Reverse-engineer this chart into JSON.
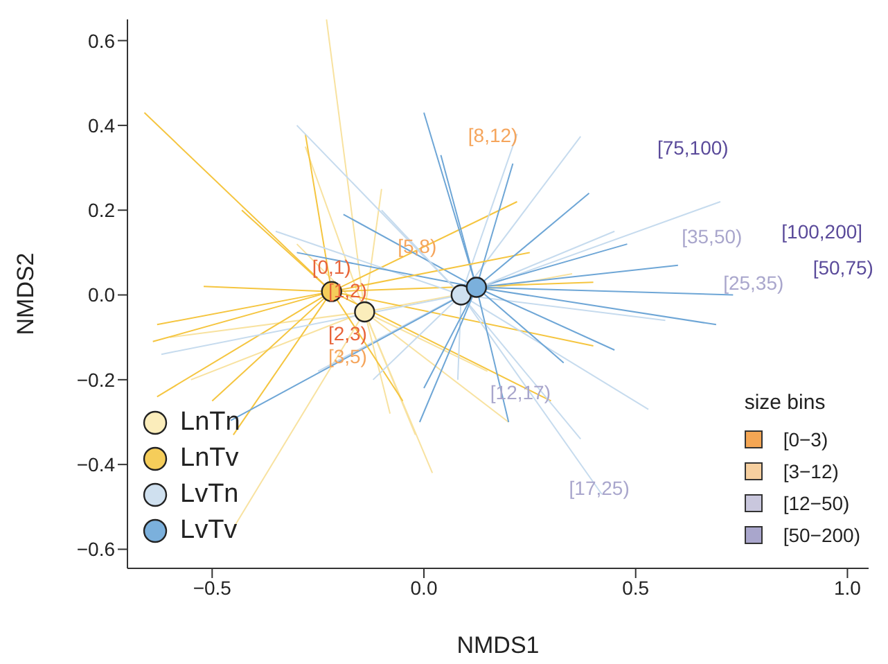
{
  "chart_data": {
    "type": "scatter",
    "xlabel": "NMDS1",
    "ylabel": "NMDS2",
    "legend_title": "size bins",
    "legend": "bottom left",
    "grid": false,
    "xlim": [
      -0.7,
      1.05
    ],
    "ylim": [
      -0.645,
      0.65
    ],
    "xticks": [
      {
        "value": -0.5,
        "label": "−0.5"
      },
      {
        "value": 0,
        "label": "0.0"
      },
      {
        "value": 0.5,
        "label": "0.5"
      },
      {
        "value": 1,
        "label": "1.0"
      }
    ],
    "yticks": [
      {
        "value": -0.6,
        "label": "−0.6"
      },
      {
        "value": -0.4,
        "label": "−0.4"
      },
      {
        "value": -0.2,
        "label": "−0.2"
      },
      {
        "value": 0,
        "label": "0.0"
      },
      {
        "value": 0.2,
        "label": "0.2"
      },
      {
        "value": 0.4,
        "label": "0.4"
      },
      {
        "value": 0.6,
        "label": "0.6"
      }
    ],
    "series": [
      {
        "type": "line",
        "marker": "none",
        "color": "#f8e2a0",
        "x": [
          -0.23,
          -0.14
        ],
        "values": [
          0.65,
          -0.04
        ]
      },
      {
        "type": "line",
        "marker": "none",
        "color": "#f8e2a0",
        "x": [
          -0.28,
          -0.14
        ],
        "values": [
          0.35,
          -0.04
        ]
      },
      {
        "type": "line",
        "marker": "none",
        "color": "#f8e2a0",
        "x": [
          -0.14,
          -0.1
        ],
        "values": [
          -0.04,
          0.25
        ]
      },
      {
        "type": "line",
        "marker": "none",
        "color": "#f8e2a0",
        "x": [
          -0.45,
          -0.14
        ],
        "values": [
          -0.55,
          -0.04
        ]
      },
      {
        "type": "line",
        "marker": "none",
        "color": "#f8e2a0",
        "x": [
          -0.14,
          -0.02
        ],
        "values": [
          -0.04,
          -0.33
        ]
      },
      {
        "type": "line",
        "marker": "none",
        "color": "#f8e2a0",
        "x": [
          -0.14,
          0.02
        ],
        "values": [
          -0.04,
          -0.42
        ]
      },
      {
        "type": "line",
        "marker": "none",
        "color": "#f8e2a0",
        "x": [
          -0.6,
          -0.14
        ],
        "values": [
          -0.1,
          -0.04
        ]
      },
      {
        "type": "line",
        "marker": "none",
        "color": "#f8e2a0",
        "x": [
          -0.55,
          -0.14
        ],
        "values": [
          -0.2,
          -0.04
        ]
      },
      {
        "type": "line",
        "marker": "none",
        "color": "#f8e2a0",
        "x": [
          -0.14,
          0.15
        ],
        "values": [
          -0.04,
          -0.18
        ]
      },
      {
        "type": "line",
        "marker": "none",
        "color": "#f8e2a0",
        "x": [
          -0.3,
          -0.14
        ],
        "values": [
          0.12,
          -0.04
        ]
      },
      {
        "type": "line",
        "marker": "none",
        "color": "#f8e2a0",
        "x": [
          -0.14,
          0.35
        ],
        "values": [
          -0.04,
          0.05
        ]
      },
      {
        "type": "line",
        "marker": "none",
        "color": "#f8e2a0",
        "x": [
          -0.14,
          0.2
        ],
        "values": [
          -0.04,
          -0.3
        ]
      },
      {
        "type": "line",
        "marker": "none",
        "color": "#f5c53f",
        "x": [
          -0.66,
          -0.218
        ],
        "values": [
          0.43,
          0.008
        ]
      },
      {
        "type": "line",
        "marker": "none",
        "color": "#f5c53f",
        "x": [
          -0.43,
          -0.218
        ],
        "values": [
          0.2,
          0.008
        ]
      },
      {
        "type": "line",
        "marker": "none",
        "color": "#f5c53f",
        "x": [
          -0.28,
          -0.218
        ],
        "values": [
          0.38,
          0.008
        ]
      },
      {
        "type": "line",
        "marker": "none",
        "color": "#f5c53f",
        "x": [
          -0.52,
          -0.218
        ],
        "values": [
          0.02,
          0.008
        ]
      },
      {
        "type": "line",
        "marker": "none",
        "color": "#f5c53f",
        "x": [
          -0.63,
          -0.218
        ],
        "values": [
          -0.07,
          0.008
        ]
      },
      {
        "type": "line",
        "marker": "none",
        "color": "#f5c53f",
        "x": [
          -0.64,
          -0.218
        ],
        "values": [
          -0.11,
          0.008
        ]
      },
      {
        "type": "line",
        "marker": "none",
        "color": "#f5c53f",
        "x": [
          -0.63,
          -0.218
        ],
        "values": [
          -0.24,
          0.008
        ]
      },
      {
        "type": "line",
        "marker": "none",
        "color": "#f5c53f",
        "x": [
          -0.45,
          -0.218
        ],
        "values": [
          -0.33,
          0.008
        ]
      },
      {
        "type": "line",
        "marker": "none",
        "color": "#f5c53f",
        "x": [
          -0.218,
          0.4
        ],
        "values": [
          0.008,
          -0.12
        ]
      },
      {
        "type": "line",
        "marker": "none",
        "color": "#f5c53f",
        "x": [
          -0.218,
          0.22
        ],
        "values": [
          0.008,
          0.22
        ]
      },
      {
        "type": "line",
        "marker": "none",
        "color": "#f5c53f",
        "x": [
          -0.218,
          0.3
        ],
        "values": [
          0.008,
          -0.25
        ]
      },
      {
        "type": "line",
        "marker": "none",
        "color": "#f5c53f",
        "x": [
          -0.218,
          0.4
        ],
        "values": [
          0.008,
          0.03
        ]
      },
      {
        "type": "line",
        "marker": "none",
        "color": "#c6dbee",
        "x": [
          -0.3,
          0.088
        ],
        "values": [
          0.4,
          0
        ]
      },
      {
        "type": "line",
        "marker": "none",
        "color": "#c6dbee",
        "x": [
          -0.62,
          0.088
        ],
        "values": [
          -0.14,
          0
        ]
      },
      {
        "type": "line",
        "marker": "none",
        "color": "#c6dbee",
        "x": [
          -0.25,
          0.088
        ],
        "values": [
          -0.18,
          0
        ]
      },
      {
        "type": "line",
        "marker": "none",
        "color": "#c6dbee",
        "x": [
          0.088,
          0.22
        ],
        "values": [
          0,
          0.38
        ]
      },
      {
        "type": "line",
        "marker": "none",
        "color": "#c6dbee",
        "x": [
          0.088,
          0.37
        ],
        "values": [
          0,
          0.374
        ]
      },
      {
        "type": "line",
        "marker": "none",
        "color": "#c6dbee",
        "x": [
          0.088,
          0.7
        ],
        "values": [
          0,
          0.22
        ]
      },
      {
        "type": "line",
        "marker": "none",
        "color": "#c6dbee",
        "x": [
          0.088,
          0.53
        ],
        "values": [
          0,
          -0.27
        ]
      },
      {
        "type": "line",
        "marker": "none",
        "color": "#c6dbee",
        "x": [
          0.088,
          0.57
        ],
        "values": [
          0,
          -0.06
        ]
      },
      {
        "type": "line",
        "marker": "none",
        "color": "#c6dbee",
        "x": [
          0.08,
          0.088
        ],
        "values": [
          -0.2,
          0
        ]
      },
      {
        "type": "line",
        "marker": "none",
        "color": "#c6dbee",
        "x": [
          0.088,
          0.37
        ],
        "values": [
          0,
          -0.34
        ]
      },
      {
        "type": "line",
        "marker": "none",
        "color": "#c6dbee",
        "x": [
          0.088,
          0.42
        ],
        "values": [
          0,
          -0.47
        ]
      },
      {
        "type": "line",
        "marker": "none",
        "color": "#c6dbee",
        "x": [
          -0.35,
          0.088
        ],
        "values": [
          0.15,
          0
        ]
      },
      {
        "type": "line",
        "marker": "none",
        "color": "#6ea6d6",
        "x": [
          0,
          0.124
        ],
        "values": [
          0.43,
          0.018
        ]
      },
      {
        "type": "line",
        "marker": "none",
        "color": "#6ea6d6",
        "x": [
          0.04,
          0.124
        ],
        "values": [
          0.33,
          0.018
        ]
      },
      {
        "type": "line",
        "marker": "none",
        "color": "#6ea6d6",
        "x": [
          0.124,
          0.21
        ],
        "values": [
          0.018,
          0.31
        ]
      },
      {
        "type": "line",
        "marker": "none",
        "color": "#6ea6d6",
        "x": [
          -0.19,
          0.124
        ],
        "values": [
          0.19,
          0.018
        ]
      },
      {
        "type": "line",
        "marker": "none",
        "color": "#6ea6d6",
        "x": [
          -0.456,
          0.124
        ],
        "values": [
          -0.296,
          0.018
        ]
      },
      {
        "type": "line",
        "marker": "none",
        "color": "#6ea6d6",
        "x": [
          0.124,
          0.48
        ],
        "values": [
          0.018,
          0.12
        ]
      },
      {
        "type": "line",
        "marker": "none",
        "color": "#6ea6d6",
        "x": [
          0.124,
          0.73
        ],
        "values": [
          0.018,
          0
        ]
      },
      {
        "type": "line",
        "marker": "none",
        "color": "#6ea6d6",
        "x": [
          0.124,
          0.69
        ],
        "values": [
          0.018,
          -0.07
        ]
      },
      {
        "type": "line",
        "marker": "none",
        "color": "#6ea6d6",
        "x": [
          0.124,
          0.45
        ],
        "values": [
          0.018,
          -0.13
        ]
      },
      {
        "type": "line",
        "marker": "none",
        "color": "#6ea6d6",
        "x": [
          -0.01,
          0.124
        ],
        "values": [
          -0.3,
          0.018
        ]
      },
      {
        "type": "line",
        "marker": "none",
        "color": "#6ea6d6",
        "x": [
          0.124,
          0.2
        ],
        "values": [
          0.018,
          -0.3
        ]
      },
      {
        "type": "line",
        "marker": "none",
        "color": "#6ea6d6",
        "x": [
          -0.3,
          0.124
        ],
        "values": [
          0.1,
          0.018
        ]
      },
      {
        "type": "line",
        "marker": "none",
        "color": "#f8e2a0",
        "x": [
          -0.14,
          -0.08
        ],
        "values": [
          -0.04,
          -0.28
        ]
      },
      {
        "type": "line",
        "marker": "none",
        "color": "#f5c53f",
        "x": [
          -0.5,
          -0.218
        ],
        "values": [
          -0.25,
          0.008
        ]
      },
      {
        "type": "line",
        "marker": "none",
        "color": "#f5c53f",
        "x": [
          -0.218,
          0.25
        ],
        "values": [
          0.008,
          0.1
        ]
      },
      {
        "type": "line",
        "marker": "none",
        "color": "#f5c53f",
        "x": [
          -0.218,
          -0.05
        ],
        "values": [
          0.008,
          -0.25
        ]
      },
      {
        "type": "line",
        "marker": "none",
        "color": "#c6dbee",
        "x": [
          -0.12,
          0.088
        ],
        "values": [
          -0.2,
          0
        ]
      },
      {
        "type": "line",
        "marker": "none",
        "color": "#c6dbee",
        "x": [
          -0.1,
          0.088
        ],
        "values": [
          0.2,
          0
        ]
      },
      {
        "type": "line",
        "marker": "none",
        "color": "#c6dbee",
        "x": [
          0.088,
          0.45
        ],
        "values": [
          0,
          0.15
        ]
      },
      {
        "type": "line",
        "marker": "none",
        "color": "#6ea6d6",
        "x": [
          0.124,
          0.6
        ],
        "values": [
          0.018,
          0.07
        ]
      },
      {
        "type": "line",
        "marker": "none",
        "color": "#6ea6d6",
        "x": [
          0.124,
          0.33
        ],
        "values": [
          0.018,
          -0.16
        ]
      },
      {
        "type": "line",
        "marker": "none",
        "color": "#6ea6d6",
        "x": [
          0.124,
          0.39
        ],
        "values": [
          0.018,
          0.24
        ]
      },
      {
        "type": "line",
        "marker": "none",
        "color": "#6ea6d6",
        "x": [
          0,
          0.124
        ],
        "values": [
          -0.22,
          0.018
        ]
      },
      {
        "name": "LnTn",
        "marker": "circle",
        "color": "#fbedbb",
        "x": [
          -0.14
        ],
        "values": [
          -0.04
        ]
      },
      {
        "name": "LnTv",
        "marker": "circle",
        "color": "#f5cd5a",
        "x": [
          -0.218
        ],
        "values": [
          0.008
        ]
      },
      {
        "name": "LvTn",
        "marker": "circle",
        "color": "#cfe0ef",
        "x": [
          0.088
        ],
        "values": [
          0
        ]
      },
      {
        "name": "LvTv",
        "marker": "circle",
        "color": "#7bb0dc",
        "x": [
          0.124
        ],
        "values": [
          0.018
        ]
      }
    ],
    "annotations": [
      "[0,1)",
      "[1,2)",
      "[2,3)",
      "[3,5)",
      "[5,8)",
      "[8,12)",
      "[12,17)",
      "[17,25)",
      "[25,35)",
      "[35,50)",
      "[50,75)",
      "[75,100)",
      "[100,200]",
      "[0−3)",
      "[3−12)",
      "[12−50)",
      "[50−200)"
    ]
  }
}
